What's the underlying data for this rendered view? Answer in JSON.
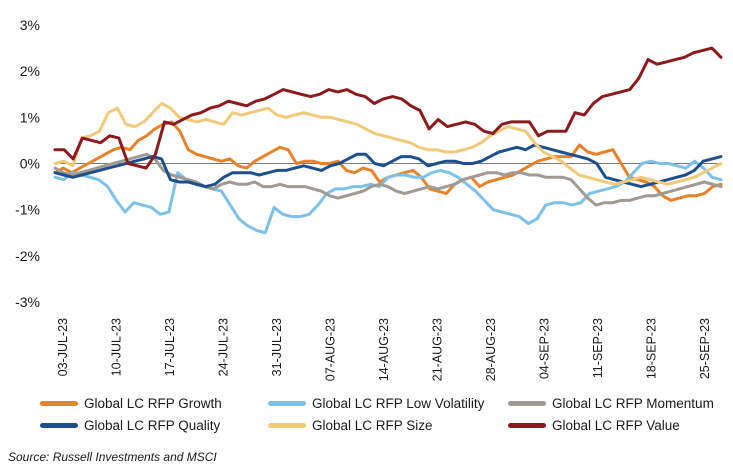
{
  "chart_data": {
    "type": "line",
    "title": "",
    "xlabel": "",
    "ylabel": "",
    "ylim": [
      -3,
      3
    ],
    "y_ticks": [
      "3%",
      "2%",
      "1%",
      "0%",
      "-1%",
      "-2%",
      "-3%"
    ],
    "x_ticks": [
      "03-JUL-23",
      "10-JUL-23",
      "17-JUL-23",
      "24-JUL-23",
      "31-JUL-23",
      "07-AUG-23",
      "14-AUG-23",
      "21-AUG-23",
      "28-AUG-23",
      "04-SEP-23",
      "11-SEP-23",
      "18-SEP-23",
      "25-SEP-23"
    ],
    "grid": false,
    "legend_position": "bottom",
    "series": [
      {
        "name": "Global LC RFP Growth",
        "color": "#e8822a",
        "values": [
          -0.2,
          -0.1,
          -0.2,
          -0.1,
          0.0,
          0.1,
          0.2,
          0.3,
          0.35,
          0.3,
          0.5,
          0.6,
          0.75,
          0.85,
          0.9,
          0.7,
          0.3,
          0.2,
          0.15,
          0.1,
          0.05,
          0.1,
          -0.05,
          -0.1,
          0.05,
          0.15,
          0.25,
          0.35,
          0.3,
          0.0,
          0.05,
          0.05,
          0.0,
          0.0,
          0.05,
          -0.15,
          -0.2,
          -0.1,
          -0.15,
          -0.4,
          -0.3,
          -0.25,
          -0.2,
          -0.15,
          -0.3,
          -0.55,
          -0.6,
          -0.65,
          -0.45,
          -0.35,
          -0.3,
          -0.5,
          -0.4,
          -0.35,
          -0.3,
          -0.25,
          -0.15,
          -0.05,
          0.05,
          0.1,
          0.15,
          0.15,
          0.15,
          0.4,
          0.25,
          0.2,
          0.25,
          0.3,
          0.0,
          -0.3,
          -0.35,
          -0.4,
          -0.5,
          -0.7,
          -0.8,
          -0.75,
          -0.7,
          -0.7,
          -0.65,
          -0.5,
          -0.45
        ]
      },
      {
        "name": "Global LC RFP Low Volatility",
        "color": "#7ec0e8",
        "values": [
          -0.3,
          -0.35,
          -0.2,
          -0.25,
          -0.3,
          -0.35,
          -0.5,
          -0.8,
          -1.05,
          -0.85,
          -0.9,
          -0.95,
          -1.1,
          -1.05,
          -0.2,
          -0.35,
          -0.45,
          -0.5,
          -0.55,
          -0.6,
          -0.9,
          -1.2,
          -1.35,
          -1.45,
          -1.5,
          -0.95,
          -1.1,
          -1.15,
          -1.15,
          -1.1,
          -0.9,
          -0.65,
          -0.55,
          -0.55,
          -0.5,
          -0.5,
          -0.45,
          -0.5,
          -0.3,
          -0.25,
          -0.25,
          -0.3,
          -0.3,
          -0.2,
          -0.15,
          -0.2,
          -0.3,
          -0.45,
          -0.6,
          -0.8,
          -1.0,
          -1.05,
          -1.1,
          -1.15,
          -1.3,
          -1.2,
          -0.9,
          -0.85,
          -0.85,
          -0.9,
          -0.85,
          -0.65,
          -0.6,
          -0.55,
          -0.5,
          -0.4,
          -0.2,
          0.0,
          0.05,
          0.0,
          0.0,
          -0.05,
          -0.1,
          0.05,
          -0.1,
          -0.3,
          -0.35
        ]
      },
      {
        "name": "Global LC RFP Momentum",
        "color": "#a09a94",
        "values": [
          -0.1,
          -0.2,
          -0.25,
          -0.2,
          -0.15,
          -0.1,
          -0.05,
          0.0,
          0.05,
          0.1,
          0.15,
          0.2,
          0.1,
          -0.15,
          -0.25,
          -0.3,
          -0.35,
          -0.4,
          -0.5,
          -0.55,
          -0.45,
          -0.4,
          -0.45,
          -0.45,
          -0.4,
          -0.5,
          -0.5,
          -0.45,
          -0.5,
          -0.5,
          -0.5,
          -0.55,
          -0.6,
          -0.7,
          -0.75,
          -0.7,
          -0.65,
          -0.6,
          -0.5,
          -0.45,
          -0.5,
          -0.6,
          -0.65,
          -0.6,
          -0.55,
          -0.5,
          -0.55,
          -0.5,
          -0.45,
          -0.35,
          -0.3,
          -0.25,
          -0.2,
          -0.2,
          -0.25,
          -0.2,
          -0.2,
          -0.25,
          -0.25,
          -0.3,
          -0.3,
          -0.3,
          -0.35,
          -0.55,
          -0.75,
          -0.9,
          -0.85,
          -0.85,
          -0.8,
          -0.8,
          -0.75,
          -0.7,
          -0.7,
          -0.65,
          -0.6,
          -0.55,
          -0.5,
          -0.45,
          -0.4,
          -0.45,
          -0.5
        ]
      },
      {
        "name": "Global LC RFP Quality",
        "color": "#1f4e8c",
        "values": [
          -0.2,
          -0.25,
          -0.3,
          -0.25,
          -0.2,
          -0.15,
          -0.1,
          -0.05,
          0.0,
          0.05,
          0.1,
          0.15,
          0.1,
          -0.35,
          -0.4,
          -0.4,
          -0.45,
          -0.5,
          -0.45,
          -0.3,
          -0.2,
          -0.2,
          -0.2,
          -0.25,
          -0.2,
          -0.15,
          -0.15,
          -0.1,
          -0.05,
          -0.1,
          -0.15,
          -0.05,
          0.0,
          0.1,
          0.2,
          0.2,
          0.0,
          -0.05,
          0.05,
          0.15,
          0.15,
          0.1,
          -0.05,
          0.0,
          0.05,
          0.05,
          0.0,
          0.0,
          0.05,
          0.15,
          0.25,
          0.3,
          0.35,
          0.3,
          0.4,
          0.35,
          0.3,
          0.25,
          0.2,
          0.15,
          0.1,
          0.0,
          -0.3,
          -0.35,
          -0.4,
          -0.45,
          -0.5,
          -0.45,
          -0.4,
          -0.35,
          -0.3,
          -0.25,
          -0.15,
          0.05,
          0.1,
          0.15
        ]
      },
      {
        "name": "Global LC RFP Size",
        "color": "#f0c97a",
        "values": [
          0.0,
          0.05,
          -0.05,
          0.55,
          0.6,
          0.7,
          1.1,
          1.2,
          0.85,
          0.8,
          0.9,
          1.1,
          1.3,
          1.2,
          1.0,
          0.95,
          0.9,
          0.95,
          0.9,
          0.85,
          1.1,
          1.05,
          1.1,
          1.15,
          1.2,
          1.05,
          1.0,
          1.05,
          1.1,
          1.05,
          1.0,
          1.0,
          0.95,
          0.9,
          0.85,
          0.75,
          0.65,
          0.6,
          0.55,
          0.5,
          0.45,
          0.35,
          0.3,
          0.3,
          0.25,
          0.25,
          0.3,
          0.35,
          0.45,
          0.6,
          0.7,
          0.8,
          0.75,
          0.7,
          0.45,
          0.25,
          0.15,
          0.05,
          -0.1,
          -0.25,
          -0.3,
          -0.35,
          -0.4,
          -0.45,
          -0.4,
          -0.35,
          -0.3,
          -0.35,
          -0.4,
          -0.45,
          -0.4,
          -0.35,
          -0.3,
          -0.2,
          -0.1,
          0.0
        ]
      },
      {
        "name": "Global LC RFP Value",
        "color": "#8b1a1f",
        "values": [
          0.3,
          0.3,
          0.1,
          0.55,
          0.5,
          0.45,
          0.6,
          0.55,
          0.0,
          -0.05,
          -0.1,
          0.2,
          0.9,
          0.85,
          0.95,
          1.05,
          1.1,
          1.2,
          1.25,
          1.35,
          1.3,
          1.25,
          1.35,
          1.4,
          1.5,
          1.6,
          1.55,
          1.5,
          1.45,
          1.5,
          1.6,
          1.55,
          1.6,
          1.5,
          1.45,
          1.3,
          1.4,
          1.45,
          1.4,
          1.25,
          1.15,
          0.75,
          0.95,
          0.8,
          0.85,
          0.9,
          0.85,
          0.7,
          0.65,
          0.85,
          0.9,
          0.9,
          0.9,
          0.6,
          0.7,
          0.7,
          0.7,
          1.1,
          1.05,
          1.3,
          1.45,
          1.5,
          1.55,
          1.6,
          1.85,
          2.25,
          2.15,
          2.2,
          2.25,
          2.3,
          2.4,
          2.45,
          2.5,
          2.3
        ]
      }
    ]
  },
  "legend": [
    {
      "label": "Global LC RFP Growth",
      "color": "#e8822a"
    },
    {
      "label": "Global LC RFP Low Volatility",
      "color": "#7ec0e8"
    },
    {
      "label": "Global LC RFP Momentum",
      "color": "#a09a94"
    },
    {
      "label": "Global LC RFP Quality",
      "color": "#1f4e8c"
    },
    {
      "label": "Global LC RFP Size",
      "color": "#f0c97a"
    },
    {
      "label": "Global LC RFP Value",
      "color": "#8b1a1f"
    }
  ],
  "source": "Source: Russell Investments and MSCI"
}
